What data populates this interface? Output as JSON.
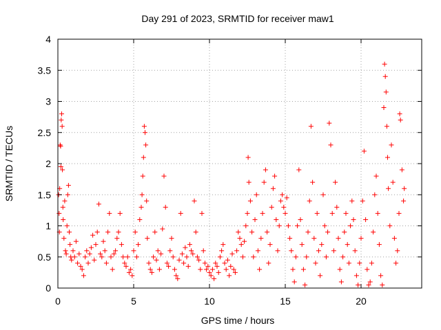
{
  "chart_data": {
    "type": "scatter",
    "title": "Day 291 of 2023, SRMTID for receiver maw1",
    "xlabel": "GPS time / hours",
    "ylabel": "SRMTID / TECUs",
    "xlim": [
      0,
      24
    ],
    "ylim": [
      0,
      4
    ],
    "x_ticks": [
      0,
      5,
      10,
      15,
      20
    ],
    "x_tick_labels": [
      "0",
      "5",
      "10",
      "15",
      "20"
    ],
    "y_ticks": [
      0,
      0.5,
      1,
      1.5,
      2,
      2.5,
      3,
      3.5,
      4
    ],
    "y_tick_labels": [
      "0",
      "0.5",
      "1",
      "1.5",
      "2",
      "2.5",
      "3",
      "3.5",
      "4"
    ],
    "grid": true,
    "marker": "+",
    "series": [
      {
        "name": "maw1",
        "color": "#ff0000",
        "points": [
          [
            0.05,
            1.5
          ],
          [
            0.08,
            1.2
          ],
          [
            0.1,
            0.9
          ],
          [
            0.12,
            1.6
          ],
          [
            0.15,
            2.3
          ],
          [
            0.18,
            2.28
          ],
          [
            0.2,
            1.95
          ],
          [
            0.22,
            2.7
          ],
          [
            0.25,
            2.8
          ],
          [
            0.28,
            2.6
          ],
          [
            0.3,
            1.9
          ],
          [
            0.33,
            1.3
          ],
          [
            0.35,
            1.1
          ],
          [
            0.4,
            0.8
          ],
          [
            0.45,
            1.4
          ],
          [
            0.5,
            0.6
          ],
          [
            0.55,
            0.55
          ],
          [
            0.6,
            1.0
          ],
          [
            0.65,
            1.5
          ],
          [
            0.7,
            1.65
          ],
          [
            0.75,
            0.9
          ],
          [
            0.8,
            0.7
          ],
          [
            0.85,
            0.5
          ],
          [
            0.9,
            0.45
          ],
          [
            1.0,
            0.6
          ],
          [
            1.1,
            0.5
          ],
          [
            1.2,
            0.75
          ],
          [
            1.3,
            0.4
          ],
          [
            1.4,
            0.55
          ],
          [
            1.5,
            0.35
          ],
          [
            1.6,
            0.3
          ],
          [
            1.7,
            0.2
          ],
          [
            1.8,
            0.5
          ],
          [
            1.9,
            0.6
          ],
          [
            2.0,
            0.4
          ],
          [
            2.1,
            0.55
          ],
          [
            2.2,
            0.65
          ],
          [
            2.3,
            0.85
          ],
          [
            2.4,
            0.45
          ],
          [
            2.5,
            0.7
          ],
          [
            2.6,
            0.9
          ],
          [
            2.7,
            1.35
          ],
          [
            2.8,
            0.55
          ],
          [
            2.9,
            0.5
          ],
          [
            3.0,
            0.75
          ],
          [
            3.1,
            0.6
          ],
          [
            3.2,
            0.4
          ],
          [
            3.3,
            0.9
          ],
          [
            3.4,
            1.2
          ],
          [
            3.5,
            0.5
          ],
          [
            3.6,
            0.3
          ],
          [
            3.7,
            0.55
          ],
          [
            3.8,
            0.6
          ],
          [
            3.9,
            0.8
          ],
          [
            4.0,
            0.9
          ],
          [
            4.1,
            1.2
          ],
          [
            4.2,
            0.7
          ],
          [
            4.3,
            0.5
          ],
          [
            4.4,
            0.4
          ],
          [
            4.5,
            0.35
          ],
          [
            4.6,
            0.5
          ],
          [
            4.7,
            0.25
          ],
          [
            4.8,
            0.3
          ],
          [
            4.9,
            0.2
          ],
          [
            5.0,
            0.6
          ],
          [
            5.1,
            0.9
          ],
          [
            5.2,
            0.5
          ],
          [
            5.3,
            0.7
          ],
          [
            5.4,
            1.1
          ],
          [
            5.5,
            1.3
          ],
          [
            5.55,
            1.5
          ],
          [
            5.6,
            1.8
          ],
          [
            5.65,
            2.1
          ],
          [
            5.7,
            2.6
          ],
          [
            5.75,
            2.5
          ],
          [
            5.8,
            2.3
          ],
          [
            5.85,
            1.4
          ],
          [
            5.9,
            0.8
          ],
          [
            6.0,
            0.4
          ],
          [
            6.1,
            0.3
          ],
          [
            6.2,
            0.25
          ],
          [
            6.3,
            0.5
          ],
          [
            6.4,
            0.9
          ],
          [
            6.5,
            0.45
          ],
          [
            6.6,
            0.6
          ],
          [
            6.7,
            0.3
          ],
          [
            6.8,
            0.55
          ],
          [
            6.9,
            0.95
          ],
          [
            7.0,
            1.8
          ],
          [
            7.1,
            1.3
          ],
          [
            7.2,
            0.4
          ],
          [
            7.3,
            0.35
          ],
          [
            7.4,
            0.6
          ],
          [
            7.5,
            0.8
          ],
          [
            7.6,
            0.5
          ],
          [
            7.7,
            0.3
          ],
          [
            7.8,
            0.2
          ],
          [
            7.9,
            0.15
          ],
          [
            8.0,
            0.45
          ],
          [
            8.1,
            1.2
          ],
          [
            8.2,
            0.55
          ],
          [
            8.3,
            0.4
          ],
          [
            8.4,
            0.65
          ],
          [
            8.5,
            0.5
          ],
          [
            8.6,
            0.35
          ],
          [
            8.7,
            0.7
          ],
          [
            8.8,
            0.6
          ],
          [
            8.9,
            0.55
          ],
          [
            9.0,
            1.4
          ],
          [
            9.1,
            0.9
          ],
          [
            9.2,
            0.5
          ],
          [
            9.3,
            0.45
          ],
          [
            9.4,
            0.3
          ],
          [
            9.5,
            1.2
          ],
          [
            9.6,
            0.6
          ],
          [
            9.7,
            0.4
          ],
          [
            9.8,
            0.3
          ],
          [
            9.9,
            0.35
          ],
          [
            10.0,
            0.25
          ],
          [
            10.1,
            0.2
          ],
          [
            10.2,
            0.3
          ],
          [
            10.3,
            0.15
          ],
          [
            10.4,
            0.4
          ],
          [
            10.5,
            0.35
          ],
          [
            10.6,
            0.25
          ],
          [
            10.7,
            0.5
          ],
          [
            10.8,
            0.6
          ],
          [
            10.9,
            0.7
          ],
          [
            11.0,
            0.4
          ],
          [
            11.1,
            0.3
          ],
          [
            11.2,
            0.45
          ],
          [
            11.3,
            0.2
          ],
          [
            11.4,
            0.35
          ],
          [
            11.5,
            0.55
          ],
          [
            11.6,
            0.3
          ],
          [
            11.7,
            0.25
          ],
          [
            11.8,
            0.6
          ],
          [
            11.9,
            0.9
          ],
          [
            12.0,
            0.8
          ],
          [
            12.1,
            0.7
          ],
          [
            12.2,
            0.5
          ],
          [
            12.3,
            0.75
          ],
          [
            12.4,
            1.0
          ],
          [
            12.5,
            1.2
          ],
          [
            12.55,
            2.1
          ],
          [
            12.6,
            1.7
          ],
          [
            12.7,
            1.4
          ],
          [
            12.8,
            0.9
          ],
          [
            12.9,
            0.5
          ],
          [
            13.0,
            1.1
          ],
          [
            13.1,
            1.5
          ],
          [
            13.2,
            0.6
          ],
          [
            13.3,
            0.3
          ],
          [
            13.4,
            0.8
          ],
          [
            13.5,
            1.2
          ],
          [
            13.6,
            1.7
          ],
          [
            13.7,
            1.9
          ],
          [
            13.8,
            0.9
          ],
          [
            13.9,
            0.4
          ],
          [
            14.0,
            0.7
          ],
          [
            14.1,
            1.3
          ],
          [
            14.2,
            1.6
          ],
          [
            14.3,
            1.8
          ],
          [
            14.4,
            1.1
          ],
          [
            14.5,
            0.6
          ],
          [
            14.6,
            1.0
          ],
          [
            14.7,
            1.4
          ],
          [
            14.8,
            1.5
          ],
          [
            14.9,
            1.3
          ],
          [
            15.0,
            1.2
          ],
          [
            15.1,
            1.45
          ],
          [
            15.2,
            1.0
          ],
          [
            15.3,
            0.8
          ],
          [
            15.4,
            0.6
          ],
          [
            15.5,
            0.3
          ],
          [
            15.6,
            0.1
          ],
          [
            15.7,
            0.5
          ],
          [
            15.8,
            1.0
          ],
          [
            15.9,
            1.9
          ],
          [
            16.0,
            1.1
          ],
          [
            16.1,
            0.7
          ],
          [
            16.2,
            0.3
          ],
          [
            16.3,
            0.05
          ],
          [
            16.4,
            0.5
          ],
          [
            16.5,
            0.9
          ],
          [
            16.6,
            1.4
          ],
          [
            16.7,
            2.6
          ],
          [
            16.8,
            1.7
          ],
          [
            16.9,
            0.8
          ],
          [
            17.0,
            0.4
          ],
          [
            17.1,
            1.2
          ],
          [
            17.2,
            0.6
          ],
          [
            17.3,
            0.2
          ],
          [
            17.4,
            0.7
          ],
          [
            17.5,
            1.5
          ],
          [
            17.6,
            1.0
          ],
          [
            17.7,
            0.5
          ],
          [
            17.8,
            0.9
          ],
          [
            17.9,
            2.65
          ],
          [
            18.0,
            2.3
          ],
          [
            18.1,
            1.2
          ],
          [
            18.2,
            0.6
          ],
          [
            18.3,
            1.7
          ],
          [
            18.4,
            1.3
          ],
          [
            18.5,
            0.8
          ],
          [
            18.6,
            0.3
          ],
          [
            18.7,
            0.1
          ],
          [
            18.8,
            0.5
          ],
          [
            18.9,
            0.9
          ],
          [
            19.0,
            1.2
          ],
          [
            19.1,
            0.7
          ],
          [
            19.2,
            0.4
          ],
          [
            19.3,
            1.0
          ],
          [
            19.4,
            1.4
          ],
          [
            19.5,
            1.1
          ],
          [
            19.6,
            0.6
          ],
          [
            19.7,
            0.2
          ],
          [
            19.8,
            0.05
          ],
          [
            19.9,
            0.4
          ],
          [
            20.0,
            0.8
          ],
          [
            20.1,
            1.4
          ],
          [
            20.2,
            2.2
          ],
          [
            20.3,
            1.1
          ],
          [
            20.4,
            0.3
          ],
          [
            20.5,
            0.05
          ],
          [
            20.6,
            0.1
          ],
          [
            20.7,
            0.4
          ],
          [
            20.8,
            0.9
          ],
          [
            20.9,
            1.5
          ],
          [
            21.0,
            1.8
          ],
          [
            21.1,
            1.2
          ],
          [
            21.2,
            0.7
          ],
          [
            21.3,
            0.2
          ],
          [
            21.4,
            0.05
          ],
          [
            21.5,
            2.9
          ],
          [
            21.55,
            3.6
          ],
          [
            21.6,
            3.4
          ],
          [
            21.65,
            3.15
          ],
          [
            21.7,
            2.6
          ],
          [
            21.75,
            2.1
          ],
          [
            21.8,
            1.6
          ],
          [
            21.9,
            1.0
          ],
          [
            22.0,
            2.3
          ],
          [
            22.1,
            1.7
          ],
          [
            22.2,
            0.8
          ],
          [
            22.3,
            0.4
          ],
          [
            22.4,
            0.6
          ],
          [
            22.5,
            1.2
          ],
          [
            22.55,
            2.8
          ],
          [
            22.6,
            2.7
          ],
          [
            22.7,
            1.9
          ],
          [
            22.8,
            1.4
          ],
          [
            22.85,
            1.6
          ]
        ]
      }
    ]
  }
}
